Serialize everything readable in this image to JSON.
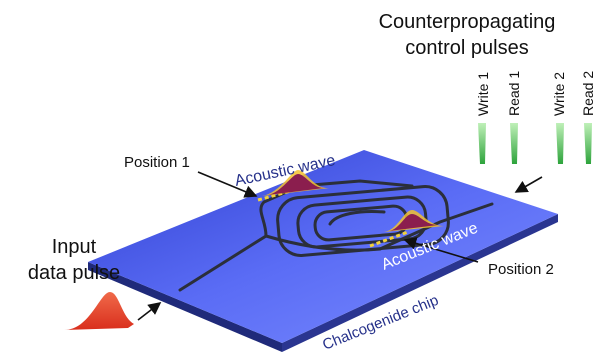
{
  "title_line1": "Counterpropagating",
  "title_line2": "control pulses",
  "pulse_labels": [
    "Write 1",
    "Read 1",
    "Write 2",
    "Read 2"
  ],
  "position1_label": "Position 1",
  "position2_label": "Position 2",
  "acoustic_wave_top": "Acoustic wave",
  "acoustic_wave_bottom": "Acoustic wave",
  "input_line1": "Input",
  "input_line2": "data pulse",
  "chip_label": "Chalcogenide chip",
  "colors": {
    "chip_top": "#4f5ff0",
    "chip_side": "#26318a",
    "waveguide": "#2b2f3a",
    "input_pulse": "#e8402a",
    "control_pulse": "#3cb043",
    "acoustic_pulse": "#8b1e4e",
    "acoustic_glow": "#f2c12e",
    "label_blue": "#26318a"
  }
}
